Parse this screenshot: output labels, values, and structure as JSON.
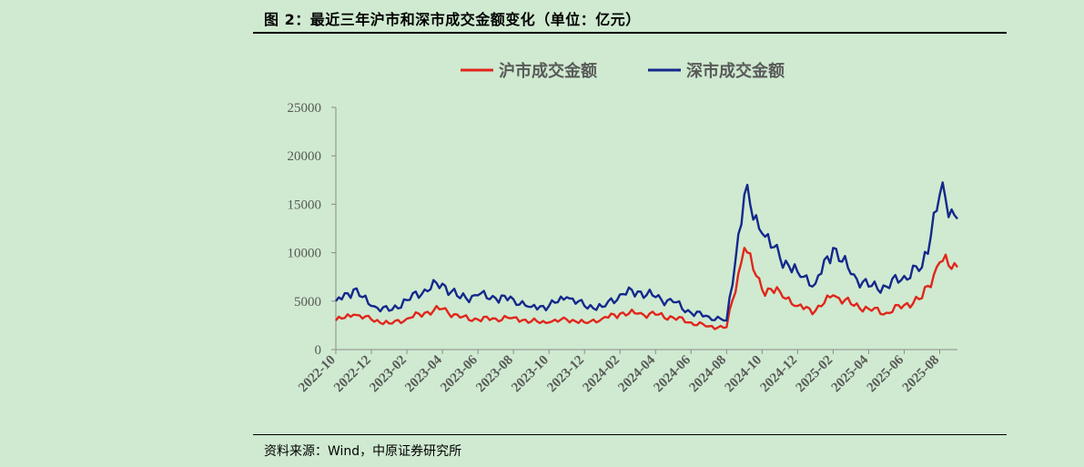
{
  "figure": {
    "title": "图 2：最近三年沪市和深市成交金额变化（单位：亿元）",
    "source": "资料来源：Wind，中原证券研究所"
  },
  "chart_data": {
    "type": "line",
    "title": "",
    "xlabel": "",
    "ylabel": "",
    "ylim": [
      0,
      25000
    ],
    "yticks": [
      0,
      5000,
      10000,
      15000,
      20000,
      25000
    ],
    "x": [
      "2022-10",
      "2022-11",
      "2022-12",
      "2023-01",
      "2023-02",
      "2023-03",
      "2023-04",
      "2023-05",
      "2023-06",
      "2023-07",
      "2023-08",
      "2023-09",
      "2023-10",
      "2023-11",
      "2023-12",
      "2024-01",
      "2024-02",
      "2024-03",
      "2024-04",
      "2024-05",
      "2024-06",
      "2024-07",
      "2024-08",
      "2024-09",
      "2024-10",
      "2024-11",
      "2024-12",
      "2025-01",
      "2025-02",
      "2025-03",
      "2025-04",
      "2025-05",
      "2025-06",
      "2025-07",
      "2025-08",
      "2025-09"
    ],
    "xticks": [
      "2022-10",
      "2022-12",
      "2023-02",
      "2023-04",
      "2023-06",
      "2023-08",
      "2023-10",
      "2023-12",
      "2024-02",
      "2024-04",
      "2024-06",
      "2024-08",
      "2024-10",
      "2024-12",
      "2025-02",
      "2025-04",
      "2025-06",
      "2025-08"
    ],
    "legend_position": "top",
    "grid": false,
    "series": [
      {
        "name": "沪市成交金额",
        "color": "#e1261c",
        "values": [
          3000,
          3600,
          3100,
          2700,
          3200,
          3800,
          4200,
          3300,
          3100,
          3200,
          3300,
          2900,
          2800,
          3100,
          2800,
          3200,
          3700,
          3700,
          3600,
          3300,
          2800,
          2400,
          2300,
          10500,
          6200,
          6000,
          4500,
          4000,
          5600,
          4700,
          4200,
          3800,
          4600,
          5300,
          9000,
          8500
        ]
      },
      {
        "name": "深市成交金额",
        "color": "#14288c",
        "values": [
          5000,
          6200,
          4500,
          4000,
          5100,
          6200,
          6800,
          5300,
          5600,
          5300,
          5200,
          4400,
          4500,
          5400,
          4500,
          4400,
          5700,
          6000,
          5400,
          4900,
          3800,
          3400,
          3000,
          16000,
          12000,
          9500,
          8000,
          6800,
          10500,
          7800,
          6500,
          6500,
          7600,
          8500,
          16000,
          13500
        ]
      }
    ]
  }
}
